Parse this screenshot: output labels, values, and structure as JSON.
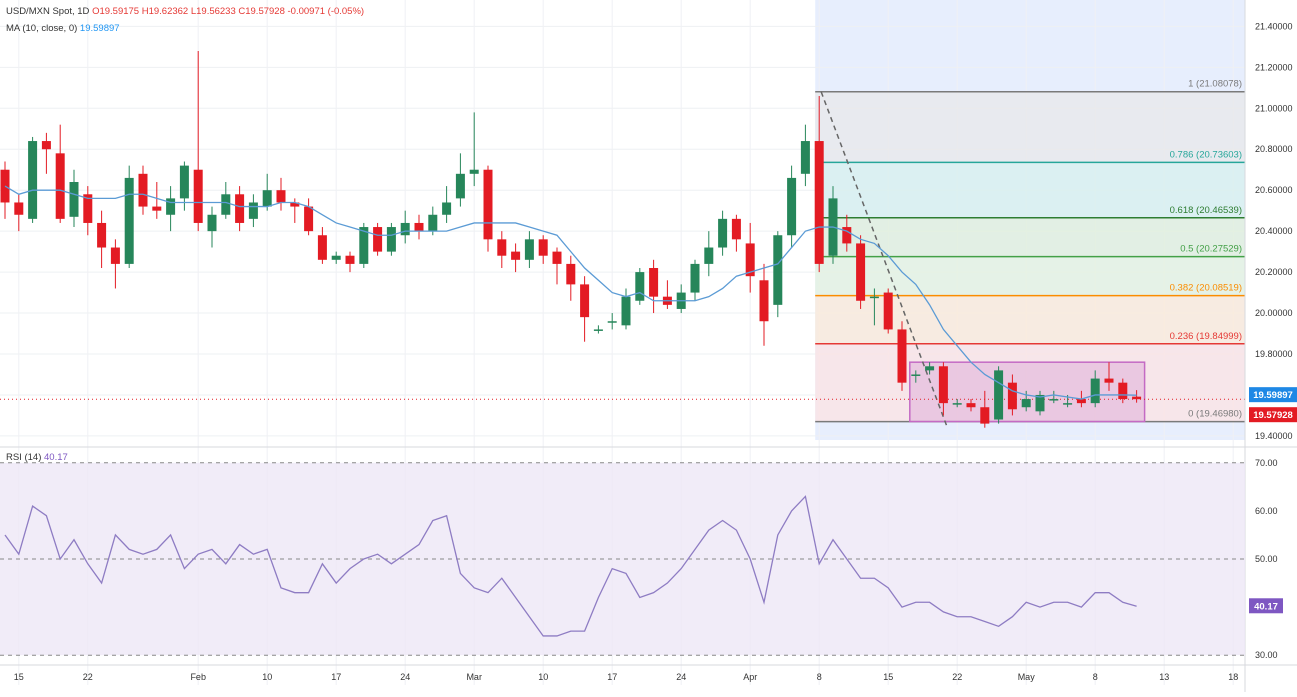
{
  "header": {
    "symbol": "USD/MXN Spot, 1D",
    "ohlc": "O19.59175 H19.62362 L19.56233 C19.57928 -0.00971 (-0.05%)",
    "ma_label": "MA (10, close, 0)",
    "ma_value": "19.59897",
    "rsi_label": "RSI (14)",
    "rsi_value": "40.17"
  },
  "colors": {
    "up": "#26865a",
    "down": "#e31b23",
    "ma": "#5b9bd5",
    "rsi": "#8e7cc3",
    "range_box": "#c46ac4",
    "background_zone": "#e3ebfd"
  },
  "chart_data": [
    {
      "type": "candlestick",
      "title": "USD/MXN Spot, 1D",
      "y_ticks": [
        "19.40000",
        "19.60000",
        "19.80000",
        "20.00000",
        "20.20000",
        "20.40000",
        "20.60000",
        "20.80000",
        "21.00000",
        "21.20000",
        "21.40000"
      ],
      "ylim": [
        19.38,
        21.48
      ],
      "x_ticks": [
        "15",
        "22",
        "Feb",
        "10",
        "17",
        "24",
        "Mar",
        "10",
        "17",
        "24",
        "Apr",
        "8",
        "15",
        "22",
        "May",
        "8",
        "13",
        "18"
      ],
      "candles": [
        [
          20.7,
          20.54,
          20.74,
          20.46
        ],
        [
          20.54,
          20.48,
          20.58,
          20.4
        ],
        [
          20.46,
          20.84,
          20.86,
          20.44
        ],
        [
          20.84,
          20.8,
          20.88,
          20.68
        ],
        [
          20.78,
          20.46,
          20.92,
          20.44
        ],
        [
          20.47,
          20.64,
          20.7,
          20.42
        ],
        [
          20.58,
          20.44,
          20.62,
          20.38
        ],
        [
          20.44,
          20.32,
          20.5,
          20.22
        ],
        [
          20.32,
          20.24,
          20.36,
          20.12
        ],
        [
          20.24,
          20.66,
          20.72,
          20.22
        ],
        [
          20.68,
          20.52,
          20.72,
          20.48
        ],
        [
          20.52,
          20.5,
          20.64,
          20.46
        ],
        [
          20.48,
          20.56,
          20.62,
          20.4
        ],
        [
          20.56,
          20.72,
          20.74,
          20.5
        ],
        [
          20.7,
          20.44,
          21.28,
          20.4
        ],
        [
          20.4,
          20.48,
          20.52,
          20.32
        ],
        [
          20.48,
          20.58,
          20.64,
          20.46
        ],
        [
          20.58,
          20.44,
          20.62,
          20.4
        ],
        [
          20.46,
          20.54,
          20.58,
          20.42
        ],
        [
          20.52,
          20.6,
          20.68,
          20.5
        ],
        [
          20.6,
          20.54,
          20.66,
          20.5
        ],
        [
          20.54,
          20.52,
          20.56,
          20.44
        ],
        [
          20.52,
          20.4,
          20.56,
          20.38
        ],
        [
          20.38,
          20.26,
          20.42,
          20.24
        ],
        [
          20.26,
          20.28,
          20.3,
          20.24
        ],
        [
          20.28,
          20.24,
          20.3,
          20.2
        ],
        [
          20.24,
          20.42,
          20.44,
          20.22
        ],
        [
          20.42,
          20.3,
          20.44,
          20.28
        ],
        [
          20.3,
          20.42,
          20.44,
          20.28
        ],
        [
          20.38,
          20.44,
          20.5,
          20.34
        ],
        [
          20.44,
          20.4,
          20.48,
          20.36
        ],
        [
          20.4,
          20.48,
          20.52,
          20.38
        ],
        [
          20.48,
          20.54,
          20.62,
          20.44
        ],
        [
          20.56,
          20.68,
          20.78,
          20.52
        ],
        [
          20.68,
          20.7,
          20.98,
          20.62
        ],
        [
          20.7,
          20.36,
          20.72,
          20.3
        ],
        [
          20.36,
          20.28,
          20.4,
          20.22
        ],
        [
          20.3,
          20.26,
          20.34,
          20.2
        ],
        [
          20.26,
          20.36,
          20.4,
          20.22
        ],
        [
          20.36,
          20.28,
          20.38,
          20.24
        ],
        [
          20.3,
          20.24,
          20.32,
          20.14
        ],
        [
          20.24,
          20.14,
          20.28,
          20.06
        ],
        [
          20.14,
          19.98,
          20.18,
          19.86
        ],
        [
          19.92,
          19.92,
          19.94,
          19.9
        ],
        [
          19.96,
          19.96,
          20.0,
          19.92
        ],
        [
          19.94,
          20.08,
          20.12,
          19.92
        ],
        [
          20.06,
          20.2,
          20.22,
          20.04
        ],
        [
          20.22,
          20.08,
          20.26,
          20.0
        ],
        [
          20.08,
          20.04,
          20.16,
          20.02
        ],
        [
          20.02,
          20.1,
          20.14,
          20.0
        ],
        [
          20.1,
          20.24,
          20.26,
          20.06
        ],
        [
          20.24,
          20.32,
          20.4,
          20.18
        ],
        [
          20.32,
          20.46,
          20.5,
          20.28
        ],
        [
          20.46,
          20.36,
          20.48,
          20.3
        ],
        [
          20.34,
          20.18,
          20.44,
          20.1
        ],
        [
          20.16,
          19.96,
          20.24,
          19.84
        ],
        [
          20.04,
          20.38,
          20.4,
          19.98
        ],
        [
          20.38,
          20.66,
          20.72,
          20.32
        ],
        [
          20.68,
          20.84,
          20.92,
          20.62
        ],
        [
          20.84,
          20.24,
          21.06,
          20.2
        ],
        [
          20.28,
          20.56,
          20.62,
          20.24
        ],
        [
          20.42,
          20.34,
          20.48,
          20.3
        ],
        [
          20.34,
          20.06,
          20.38,
          20.02
        ],
        [
          20.08,
          20.08,
          20.12,
          19.94
        ],
        [
          20.1,
          19.92,
          20.12,
          19.9
        ],
        [
          19.92,
          19.66,
          19.96,
          19.62
        ],
        [
          19.7,
          19.7,
          19.72,
          19.66
        ],
        [
          19.72,
          19.74,
          19.76,
          19.7
        ],
        [
          19.74,
          19.56,
          19.76,
          19.5
        ],
        [
          19.56,
          19.56,
          19.58,
          19.54
        ],
        [
          19.56,
          19.54,
          19.58,
          19.52
        ],
        [
          19.54,
          19.46,
          19.62,
          19.44
        ],
        [
          19.48,
          19.72,
          19.74,
          19.46
        ],
        [
          19.66,
          19.53,
          19.7,
          19.5
        ],
        [
          19.54,
          19.58,
          19.62,
          19.52
        ],
        [
          19.52,
          19.6,
          19.62,
          19.5
        ],
        [
          19.58,
          19.58,
          19.62,
          19.56
        ],
        [
          19.56,
          19.56,
          19.6,
          19.54
        ],
        [
          19.58,
          19.56,
          19.62,
          19.54
        ],
        [
          19.56,
          19.68,
          19.72,
          19.54
        ],
        [
          19.68,
          19.66,
          19.76,
          19.62
        ],
        [
          19.66,
          19.58,
          19.68,
          19.56
        ],
        [
          19.59175,
          19.57928,
          19.62362,
          19.56233
        ]
      ],
      "ma_10": [
        20.62,
        20.58,
        20.6,
        20.6,
        20.6,
        20.58,
        20.56,
        20.56,
        20.56,
        20.58,
        20.58,
        20.56,
        20.54,
        20.54,
        20.54,
        20.54,
        20.54,
        20.52,
        20.52,
        20.52,
        20.54,
        20.54,
        20.52,
        20.48,
        20.44,
        20.42,
        20.4,
        20.38,
        20.38,
        20.4,
        20.4,
        20.4,
        20.4,
        20.42,
        20.44,
        20.44,
        20.44,
        20.44,
        20.42,
        20.4,
        20.38,
        20.3,
        20.22,
        20.16,
        20.1,
        20.08,
        20.1,
        20.06,
        20.06,
        20.06,
        20.06,
        20.08,
        20.12,
        20.18,
        20.2,
        20.22,
        20.24,
        20.32,
        20.4,
        20.42,
        20.42,
        20.4,
        20.36,
        20.34,
        20.28,
        20.2,
        20.14,
        20.04,
        19.92,
        19.84,
        19.76,
        19.7,
        19.66,
        19.62,
        19.6,
        19.59,
        19.6,
        19.59,
        19.58,
        19.6,
        19.6,
        19.6,
        19.59897
      ]
    },
    {
      "type": "line",
      "title": "RSI (14)",
      "y_ticks": [
        "30.00",
        "40.00",
        "50.00",
        "60.00",
        "70.00"
      ],
      "ylim": [
        29,
        71
      ],
      "guide_levels": [
        30,
        50,
        70
      ],
      "values": [
        55,
        51,
        61,
        59,
        50,
        54,
        49,
        45,
        55,
        52,
        51,
        52,
        55,
        48,
        51,
        52,
        49,
        53,
        51,
        52,
        44,
        43,
        43,
        49,
        45,
        48,
        50,
        51,
        49,
        51,
        53,
        58,
        59,
        47,
        44,
        43,
        46,
        42,
        38,
        34,
        34,
        35,
        35,
        42,
        48,
        47,
        42,
        43,
        45,
        48,
        52,
        56,
        58,
        56,
        50,
        41,
        55,
        60,
        63,
        49,
        54,
        50,
        46,
        46,
        44,
        40,
        41,
        41,
        39,
        38,
        38,
        37,
        36,
        38,
        41,
        40,
        41,
        41,
        40,
        43,
        43,
        41,
        40.17
      ]
    },
    {
      "type": "fibonacci",
      "levels": [
        {
          "label": "1 (21.08078)",
          "value": 21.08078,
          "color": "#7a7a7a"
        },
        {
          "label": "0.786 (20.73603)",
          "value": 20.73603,
          "color": "#26a69a"
        },
        {
          "label": "0.618 (20.46539)",
          "value": 20.46539,
          "color": "#2e7d32"
        },
        {
          "label": "0.5 (20.27529)",
          "value": 20.27529,
          "color": "#43a047"
        },
        {
          "label": "0.382 (20.08519)",
          "value": 20.08519,
          "color": "#fb8c00"
        },
        {
          "label": "0.236 (19.84999)",
          "value": 19.84999,
          "color": "#e53935"
        },
        {
          "label": "0 (19.46980)",
          "value": 19.4698,
          "color": "#7a7a7a"
        }
      ]
    }
  ],
  "price_tags": {
    "ma": "19.59897",
    "close": "19.57928"
  }
}
